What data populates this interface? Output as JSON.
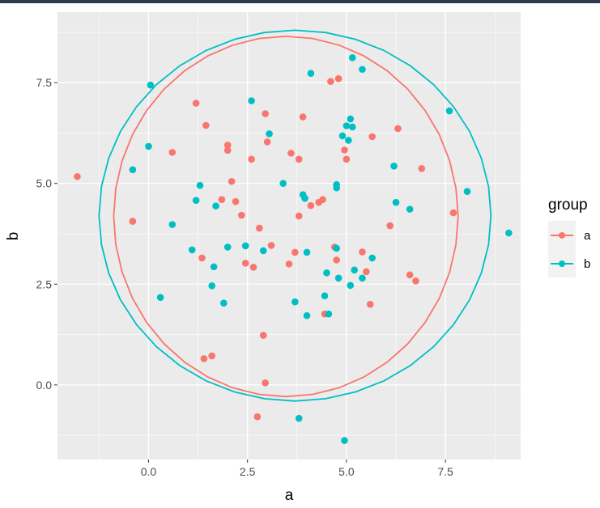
{
  "chart_data": {
    "type": "scatter",
    "title": "",
    "xlabel": "a",
    "ylabel": "b",
    "xlim": [
      -2.3,
      9.4
    ],
    "ylim": [
      -1.85,
      9.25
    ],
    "xticks": [
      0.0,
      2.5,
      5.0,
      7.5
    ],
    "xtick_labels": [
      "0.0",
      "2.5",
      "5.0",
      "7.5"
    ],
    "yticks": [
      0.0,
      2.5,
      5.0,
      7.5
    ],
    "ytick_labels": [
      "0.0",
      "2.5",
      "5.0",
      "7.5"
    ],
    "grid": true,
    "legend": {
      "title": "group",
      "position": "right"
    },
    "series": [
      {
        "name": "a",
        "color": "#F8766D",
        "points": [
          [
            -1.8,
            5.17
          ],
          [
            -0.4,
            4.06
          ],
          [
            0.6,
            5.77
          ],
          [
            1.2,
            6.99
          ],
          [
            1.45,
            6.44
          ],
          [
            1.35,
            3.15
          ],
          [
            1.4,
            0.65
          ],
          [
            1.6,
            0.72
          ],
          [
            1.85,
            4.6
          ],
          [
            2.0,
            5.82
          ],
          [
            2.0,
            5.95
          ],
          [
            2.1,
            5.05
          ],
          [
            2.2,
            4.55
          ],
          [
            2.35,
            4.21
          ],
          [
            2.45,
            3.02
          ],
          [
            2.6,
            5.6
          ],
          [
            2.65,
            2.92
          ],
          [
            2.8,
            3.89
          ],
          [
            2.9,
            1.23
          ],
          [
            2.95,
            0.05
          ],
          [
            2.95,
            6.73
          ],
          [
            3.0,
            6.03
          ],
          [
            3.1,
            3.46
          ],
          [
            2.75,
            -0.79
          ],
          [
            3.55,
            3.0
          ],
          [
            3.6,
            5.75
          ],
          [
            3.7,
            3.29
          ],
          [
            3.8,
            5.6
          ],
          [
            3.8,
            4.19
          ],
          [
            3.9,
            6.65
          ],
          [
            4.1,
            4.45
          ],
          [
            4.3,
            4.53
          ],
          [
            4.4,
            4.6
          ],
          [
            4.45,
            1.76
          ],
          [
            4.6,
            7.53
          ],
          [
            4.7,
            3.42
          ],
          [
            4.75,
            3.1
          ],
          [
            4.8,
            7.6
          ],
          [
            4.95,
            5.83
          ],
          [
            5.0,
            5.6
          ],
          [
            5.4,
            3.3
          ],
          [
            5.5,
            2.81
          ],
          [
            5.6,
            2.0
          ],
          [
            5.65,
            6.16
          ],
          [
            6.1,
            3.95
          ],
          [
            6.3,
            6.36
          ],
          [
            6.6,
            2.73
          ],
          [
            6.75,
            2.58
          ],
          [
            6.9,
            5.37
          ],
          [
            7.7,
            4.27
          ]
        ],
        "ellipse": {
          "center": [
            3.47,
            4.18
          ],
          "rx": 4.35,
          "ry": 4.47
        }
      },
      {
        "name": "b",
        "color": "#00BFC4",
        "points": [
          [
            -0.4,
            5.34
          ],
          [
            0.0,
            5.92
          ],
          [
            0.05,
            7.44
          ],
          [
            0.3,
            2.17
          ],
          [
            0.6,
            3.98
          ],
          [
            1.1,
            3.35
          ],
          [
            1.2,
            4.58
          ],
          [
            1.3,
            4.95
          ],
          [
            1.6,
            2.46
          ],
          [
            1.65,
            2.93
          ],
          [
            1.7,
            4.44
          ],
          [
            1.9,
            2.03
          ],
          [
            2.0,
            3.42
          ],
          [
            2.45,
            3.45
          ],
          [
            2.6,
            7.05
          ],
          [
            2.9,
            3.33
          ],
          [
            3.05,
            6.23
          ],
          [
            3.4,
            5.0
          ],
          [
            3.7,
            2.06
          ],
          [
            3.8,
            -0.83
          ],
          [
            3.9,
            4.72
          ],
          [
            3.95,
            4.63
          ],
          [
            4.0,
            1.72
          ],
          [
            4.0,
            3.29
          ],
          [
            4.1,
            7.73
          ],
          [
            4.45,
            2.21
          ],
          [
            4.5,
            2.78
          ],
          [
            4.55,
            1.76
          ],
          [
            4.75,
            3.39
          ],
          [
            4.75,
            4.89
          ],
          [
            4.75,
            4.97
          ],
          [
            4.8,
            2.65
          ],
          [
            4.9,
            6.18
          ],
          [
            5.0,
            6.43
          ],
          [
            5.05,
            6.07
          ],
          [
            5.1,
            6.6
          ],
          [
            5.1,
            2.47
          ],
          [
            5.15,
            8.12
          ],
          [
            5.15,
            6.4
          ],
          [
            5.2,
            2.85
          ],
          [
            4.95,
            -1.38
          ],
          [
            5.4,
            2.65
          ],
          [
            5.4,
            7.83
          ],
          [
            5.65,
            3.15
          ],
          [
            6.2,
            5.43
          ],
          [
            6.25,
            4.53
          ],
          [
            6.6,
            4.36
          ],
          [
            7.6,
            6.8
          ],
          [
            8.05,
            4.8
          ],
          [
            9.1,
            3.77
          ]
        ],
        "ellipse": {
          "center": [
            3.7,
            4.2
          ],
          "rx": 4.95,
          "ry": 4.6
        }
      }
    ]
  }
}
